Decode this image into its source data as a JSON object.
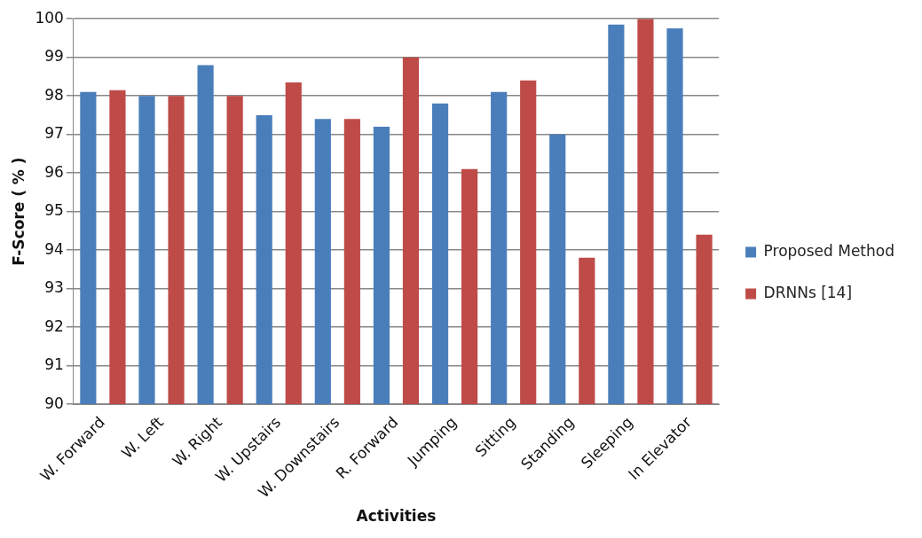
{
  "chart_data": {
    "type": "bar",
    "xlabel": "Activities",
    "ylabel": "F-Score ( % )",
    "categories": [
      "W. Forward",
      "W. Left",
      "W. Right",
      "W. Upstairs",
      "W. Downstairs",
      "R. Forward",
      "Jumping",
      "Sitting",
      "Standing",
      "Sleeping",
      "In Elevator"
    ],
    "series": [
      {
        "name": "Proposed Method",
        "color": "#4a7ebb",
        "values": [
          98.1,
          98.0,
          98.8,
          97.5,
          97.4,
          97.2,
          97.8,
          98.1,
          97.0,
          99.85,
          99.75
        ]
      },
      {
        "name": "DRNNs [14]",
        "color": "#be4b48",
        "values": [
          98.15,
          98.0,
          98.0,
          98.35,
          97.4,
          99.0,
          96.1,
          98.4,
          93.8,
          100,
          94.4
        ]
      }
    ],
    "ylim": [
      90,
      100
    ],
    "yticks": [
      90,
      91,
      92,
      93,
      94,
      95,
      96,
      97,
      98,
      99,
      100
    ],
    "grid": "y",
    "legend": "right"
  }
}
